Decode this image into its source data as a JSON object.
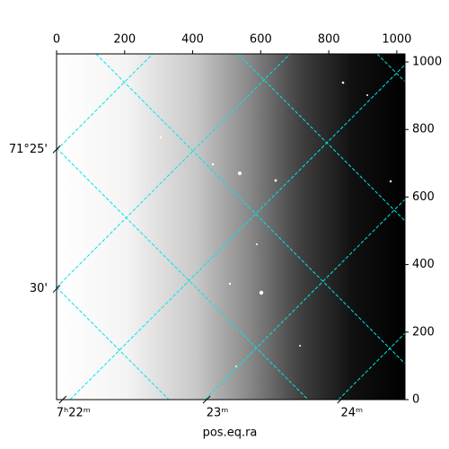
{
  "chart_data": {
    "type": "image",
    "x_label": "pos.eq.ra",
    "xlim": [
      0,
      1024
    ],
    "ylim": [
      0,
      1024
    ],
    "xticks": [
      0,
      200,
      400,
      600,
      800,
      1000
    ],
    "yticks": [
      0,
      200,
      400,
      600,
      800,
      1000
    ],
    "ra_ticks": [
      {
        "value": 18,
        "label": "7ʰ22ᵐ"
      },
      {
        "value": 441,
        "label": "23ᵐ"
      },
      {
        "value": 836,
        "label": "24ᵐ"
      }
    ],
    "dec_ticks": [
      {
        "value": 741,
        "label": "71°25'"
      },
      {
        "value": 328,
        "label": "30'"
      }
    ],
    "grid_color": "#00e5e5"
  }
}
